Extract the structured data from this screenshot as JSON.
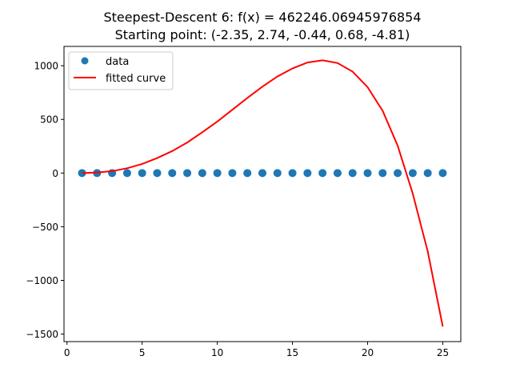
{
  "chart_data": {
    "type": "scatter",
    "title_line1": "Steepest-Descent 6: f(x) = 462246.06945976854",
    "title_line2": "Starting point: (-2.35, 2.74, -0.44, 0.68, -4.81)",
    "xlabel": "",
    "ylabel": "",
    "xlim": [
      -0.2,
      26.2
    ],
    "ylim": [
      -1570,
      1180
    ],
    "x_ticks": [
      0,
      5,
      10,
      15,
      20,
      25
    ],
    "x_tick_labels": [
      "0",
      "5",
      "10",
      "15",
      "20",
      "25"
    ],
    "y_ticks": [
      -1500,
      -1000,
      -500,
      0,
      500,
      1000
    ],
    "y_tick_labels": [
      "−1500",
      "−1000",
      "−500",
      "0",
      "500",
      "1000"
    ],
    "grid": false,
    "legend_position": "top-left",
    "series": [
      {
        "name": "data",
        "kind": "scatter",
        "color": "#1f77b4",
        "x": [
          1,
          2,
          3,
          4,
          5,
          6,
          7,
          8,
          9,
          10,
          11,
          12,
          13,
          14,
          15,
          16,
          17,
          18,
          19,
          20,
          21,
          22,
          23,
          24,
          25
        ],
        "y": [
          0,
          0,
          0,
          0,
          0,
          0,
          0,
          0,
          0,
          0,
          0,
          0,
          0,
          0,
          0,
          0,
          0,
          0,
          0,
          0,
          0,
          0,
          0,
          0,
          0
        ]
      },
      {
        "name": "fitted curve",
        "kind": "line",
        "color": "#ff0000",
        "x": [
          1,
          2,
          3,
          4,
          5,
          6,
          7,
          8,
          9,
          10,
          11,
          12,
          13,
          14,
          15,
          16,
          17,
          18,
          19,
          20,
          21,
          22,
          23,
          24,
          25
        ],
        "y": [
          0,
          5,
          18,
          45,
          85,
          140,
          205,
          285,
          380,
          480,
          590,
          700,
          805,
          900,
          975,
          1030,
          1050,
          1025,
          945,
          800,
          580,
          255,
          -190,
          -730,
          -1430
        ]
      }
    ]
  }
}
